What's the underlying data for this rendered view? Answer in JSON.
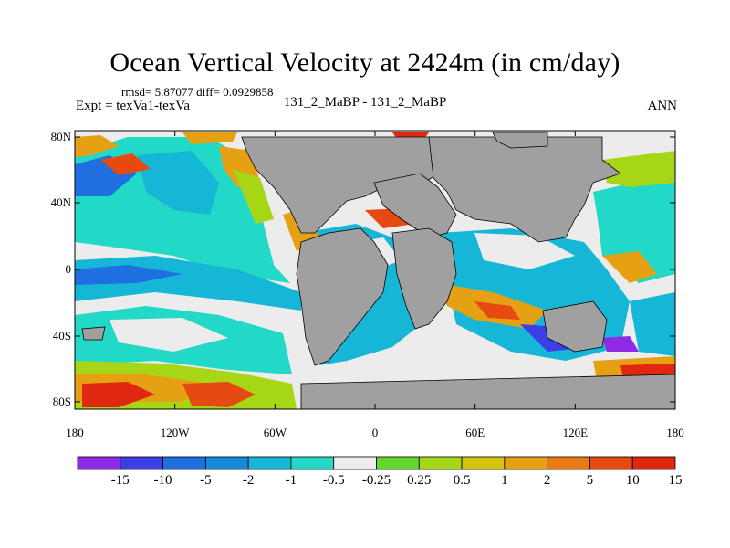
{
  "title": "Ocean Vertical Velocity at 2424m (in cm/day)",
  "stats_line": "rmsd= 5.87077 diff= 0.0929858",
  "expt_line": "Expt = texVa1-texVa",
  "case_line": "131_2_MaBP - 131_2_MaBP",
  "season": "ANN",
  "lat_labels": [
    "80N",
    "40N",
    "0",
    "40S",
    "80S"
  ],
  "lon_labels": [
    "180",
    "120W",
    "60W",
    "0",
    "60E",
    "120E",
    "180"
  ],
  "colorbar": {
    "colors": [
      "#8f2ae6",
      "#3d3ee6",
      "#1f6fe0",
      "#168ad8",
      "#16b6d6",
      "#22d8c6",
      "#ececec",
      "#62d62a",
      "#a6d616",
      "#d6c40c",
      "#e6a014",
      "#ea7a16",
      "#e64a10",
      "#e02810"
    ],
    "labels": [
      "-15",
      "-10",
      "-5",
      "-2",
      "-1",
      "-0.5",
      "-0.25",
      "0.25",
      "0.5",
      "1",
      "2",
      "5",
      "10",
      "15"
    ]
  }
}
